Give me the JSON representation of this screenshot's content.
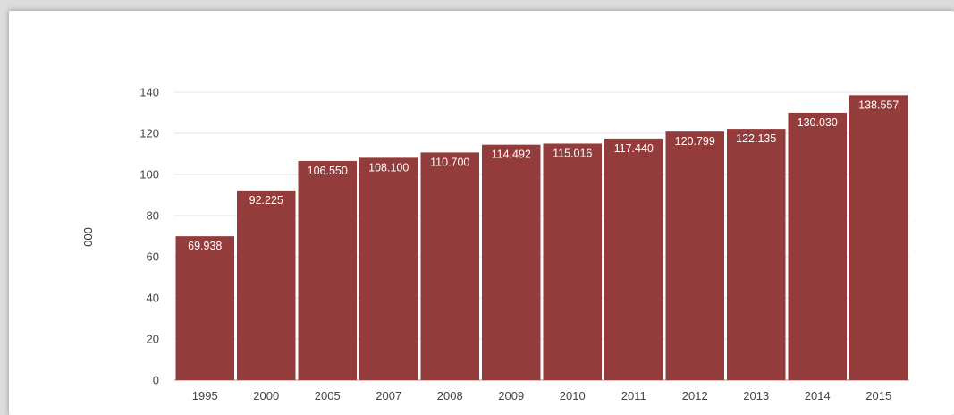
{
  "chart_data": {
    "type": "bar",
    "title": "",
    "xlabel": "",
    "ylabel": "000",
    "ylim": [
      0,
      140
    ],
    "yticks": [
      0,
      20,
      40,
      60,
      80,
      100,
      120,
      140
    ],
    "grid": true,
    "legend": "none",
    "bar_color": "#943c3c",
    "categories": [
      "1995",
      "2000",
      "2005",
      "2007",
      "2008",
      "2009",
      "2010",
      "2011",
      "2012",
      "2013",
      "2014",
      "2015"
    ],
    "values": [
      69.938,
      92.225,
      106.55,
      108.1,
      110.7,
      114.492,
      115.016,
      117.44,
      120.799,
      122.135,
      130.03,
      138.557
    ],
    "value_labels": [
      "69.938",
      "92.225",
      "106.550",
      "108.100",
      "110.700",
      "114.492",
      "115.016",
      "117.440",
      "120.799",
      "122.135",
      "130.030",
      "138.557"
    ]
  }
}
